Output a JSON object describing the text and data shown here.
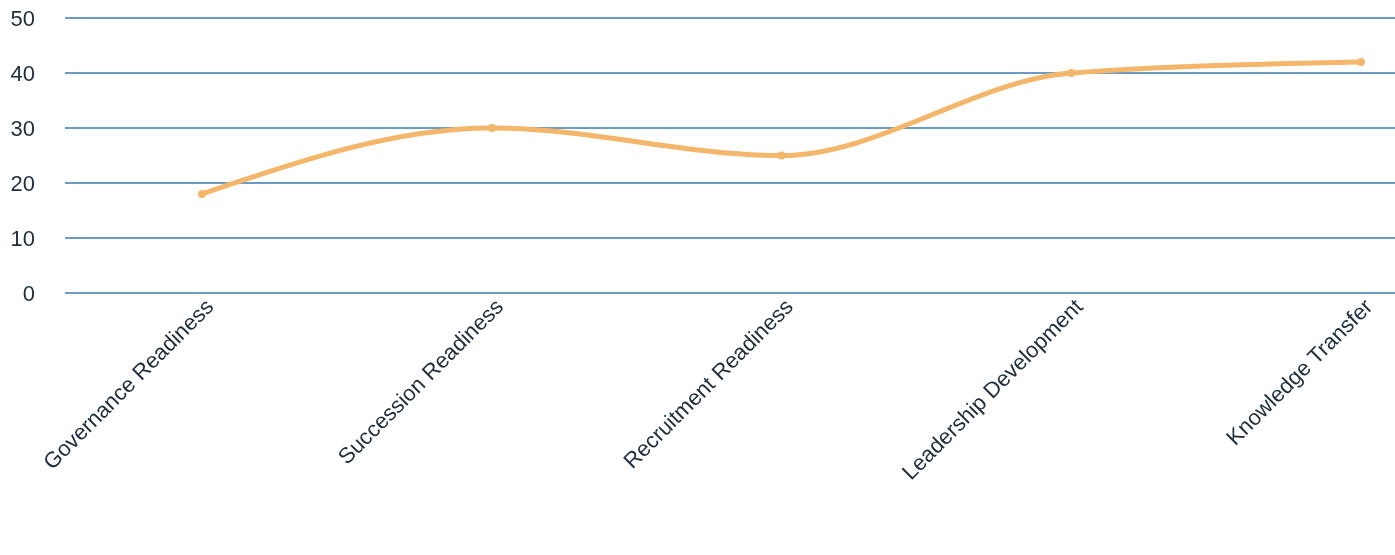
{
  "chart_data": {
    "type": "line",
    "categories": [
      "Governance Readiness",
      "Succession Readiness",
      "Recruitment Readiness",
      "Leadership Development",
      "Knowledge Transfer"
    ],
    "series": [
      {
        "color": "#f4b66a",
        "values": [
          18,
          30,
          25,
          40,
          42
        ]
      }
    ],
    "ylim": [
      0,
      50
    ],
    "yticks": [
      0,
      10,
      20,
      30,
      40,
      50
    ],
    "grid": "y",
    "marker": "circle",
    "line_style": "solid",
    "legend": false
  }
}
